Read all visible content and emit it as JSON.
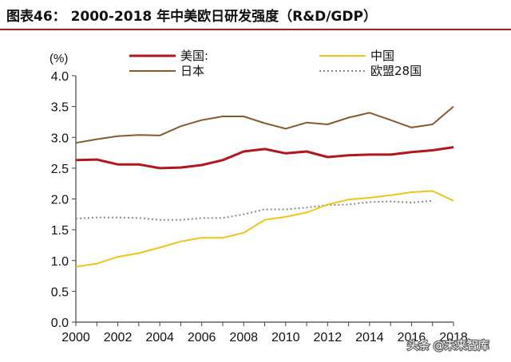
{
  "header": {
    "title": "图表46：  2000-2018 年中美欧日研发强度（R&D/GDP）",
    "accent_color": "#a31d24"
  },
  "watermark": {
    "text": "头条 @未来智库"
  },
  "chart_data": {
    "type": "line",
    "title": "图表46：  2000-2018 年中美欧日研发强度（R&D/GDP）",
    "ylabel": "(%)",
    "xlabel": "",
    "ylim": [
      0.0,
      4.0
    ],
    "xlim": [
      2000,
      2018
    ],
    "grid": false,
    "legend_position": "top",
    "y_ticks": [
      "0.0",
      "0.5",
      "1.0",
      "1.5",
      "2.0",
      "2.5",
      "3.0",
      "3.5",
      "4.0"
    ],
    "x_ticks": [
      "2000",
      "2002",
      "2004",
      "2006",
      "2008",
      "2010",
      "2012",
      "2014",
      "2016",
      "2018"
    ],
    "x": [
      2000,
      2001,
      2002,
      2003,
      2004,
      2005,
      2006,
      2007,
      2008,
      2009,
      2010,
      2011,
      2012,
      2013,
      2014,
      2015,
      2016,
      2017,
      2018
    ],
    "series": [
      {
        "name": "美国:",
        "color": "#b3161c",
        "style": "solid",
        "width": 3,
        "values": [
          2.63,
          2.64,
          2.56,
          2.56,
          2.5,
          2.51,
          2.55,
          2.63,
          2.77,
          2.81,
          2.74,
          2.77,
          2.68,
          2.71,
          2.72,
          2.72,
          2.76,
          2.79,
          2.84
        ]
      },
      {
        "name": "日本",
        "color": "#8a5a2b",
        "style": "solid",
        "width": 2,
        "values": [
          2.91,
          2.97,
          3.02,
          3.04,
          3.03,
          3.18,
          3.28,
          3.34,
          3.34,
          3.23,
          3.14,
          3.24,
          3.21,
          3.32,
          3.4,
          3.28,
          3.16,
          3.21,
          3.5
        ]
      },
      {
        "name": "中国",
        "color": "#f0c419",
        "style": "solid",
        "width": 2,
        "values": [
          0.9,
          0.95,
          1.06,
          1.12,
          1.21,
          1.31,
          1.37,
          1.37,
          1.45,
          1.66,
          1.71,
          1.78,
          1.91,
          1.99,
          2.02,
          2.06,
          2.11,
          2.13,
          1.97
        ]
      },
      {
        "name": "欧盟28国",
        "color": "#8a8a8a",
        "style": "dotted",
        "width": 2,
        "values": [
          1.68,
          1.7,
          1.7,
          1.69,
          1.66,
          1.66,
          1.69,
          1.69,
          1.75,
          1.83,
          1.83,
          1.86,
          1.9,
          1.91,
          1.95,
          1.96,
          1.94,
          1.97,
          null
        ]
      }
    ]
  }
}
